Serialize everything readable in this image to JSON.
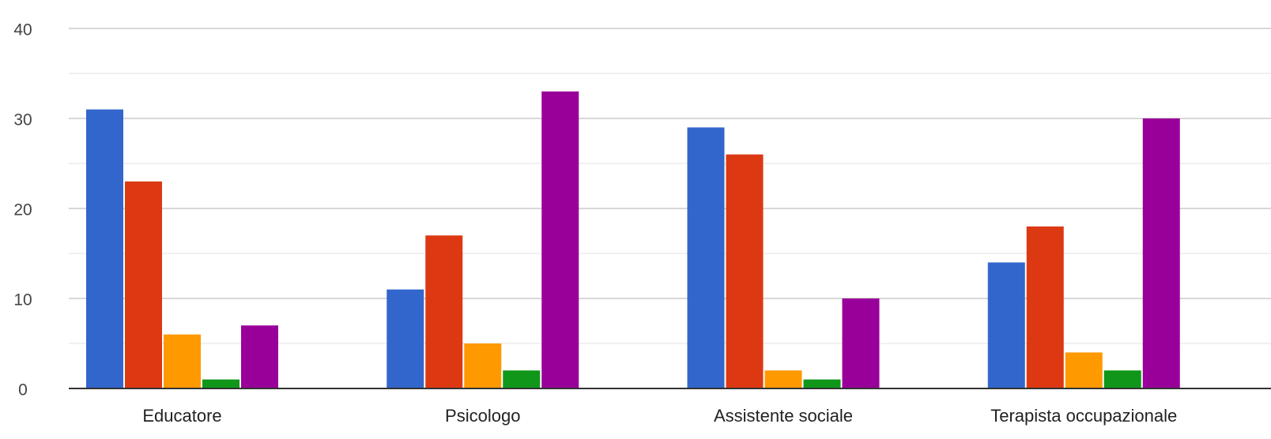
{
  "chart_data": {
    "type": "bar",
    "title": "",
    "xlabel": "",
    "ylabel": "",
    "ylim": [
      0,
      40
    ],
    "yticks": [
      0,
      10,
      20,
      30,
      40
    ],
    "minor_gridlines": true,
    "legend": "none",
    "categories": [
      "Educatore",
      "Psicologo",
      "Assistente sociale",
      "Terapista occupazionale"
    ],
    "series": [
      {
        "color": "#3366CC",
        "values": [
          31,
          11,
          29,
          14
        ]
      },
      {
        "color": "#DC3912",
        "values": [
          23,
          17,
          26,
          18
        ]
      },
      {
        "color": "#FF9900",
        "values": [
          6,
          5,
          2,
          4
        ]
      },
      {
        "color": "#109618",
        "values": [
          1,
          2,
          1,
          2
        ]
      },
      {
        "color": "#990099",
        "values": [
          7,
          33,
          10,
          30
        ]
      }
    ]
  }
}
